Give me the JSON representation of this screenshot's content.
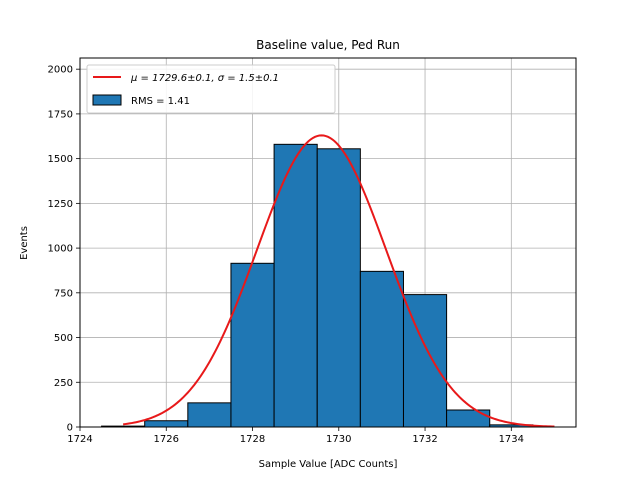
{
  "chart_data": {
    "type": "bar",
    "title": "Baseline value, Ped Run",
    "xlabel": "Sample Value [ADC Counts]",
    "ylabel": "Events",
    "xlim": [
      1724,
      1735.5
    ],
    "ylim": [
      0,
      2062.5
    ],
    "xticks": [
      1724,
      1726,
      1728,
      1730,
      1732,
      1734
    ],
    "yticks": [
      0,
      250,
      500,
      750,
      1000,
      1250,
      1500,
      1750,
      2000
    ],
    "grid": true,
    "legend_position": "upper-left",
    "series": [
      {
        "name": "RMS = 1.41",
        "kind": "histogram",
        "color": "#1f77b4",
        "edgecolor": "#000000",
        "bins": [
          {
            "lo": 1724.5,
            "hi": 1725.5,
            "count": 5
          },
          {
            "lo": 1725.5,
            "hi": 1726.5,
            "count": 35
          },
          {
            "lo": 1726.5,
            "hi": 1727.5,
            "count": 135
          },
          {
            "lo": 1727.5,
            "hi": 1728.5,
            "count": 915
          },
          {
            "lo": 1728.5,
            "hi": 1729.5,
            "count": 1580
          },
          {
            "lo": 1729.5,
            "hi": 1730.5,
            "count": 1555
          },
          {
            "lo": 1730.5,
            "hi": 1731.5,
            "count": 870
          },
          {
            "lo": 1731.5,
            "hi": 1732.5,
            "count": 740
          },
          {
            "lo": 1732.5,
            "hi": 1733.5,
            "count": 95
          },
          {
            "lo": 1733.5,
            "hi": 1734.5,
            "count": 12
          }
        ]
      },
      {
        "name": "$\\mu = 1729.6\\pm0.1, \\sigma = 1.5\\pm0.1$",
        "kind": "gaussian-fit",
        "color": "#e8191a",
        "amplitude": 1630,
        "mean": 1729.6,
        "sigma": 1.5,
        "x_range": [
          1725,
          1735
        ]
      }
    ],
    "legend": {
      "fit_label_prefix": "μ = 1729.6±0.1, σ = 1.5±0.1",
      "hist_label": "RMS = 1.41"
    }
  }
}
